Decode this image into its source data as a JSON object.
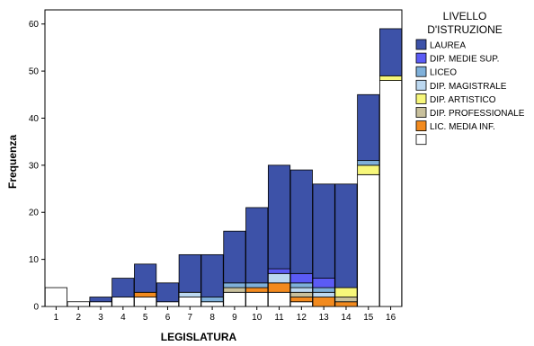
{
  "chart_data": {
    "type": "bar",
    "stacked": true,
    "title": "",
    "xlabel": "LEGISLATURA",
    "ylabel": "Frequenza",
    "categories": [
      "1",
      "2",
      "3",
      "4",
      "5",
      "6",
      "7",
      "8",
      "9",
      "10",
      "11",
      "12",
      "13",
      "14",
      "15",
      "16"
    ],
    "ylim": [
      0,
      63
    ],
    "yticks": [
      0,
      10,
      20,
      30,
      40,
      50,
      60
    ],
    "grid": false,
    "legend": {
      "title_lines": [
        "LIVELLO",
        "D'ISTRUZIONE"
      ],
      "placement": "right"
    },
    "series": [
      {
        "name": "",
        "color": "#ffffff",
        "values": [
          4,
          1,
          1,
          2,
          2,
          1,
          2,
          1,
          3,
          3,
          3,
          1,
          0,
          0,
          28,
          48
        ]
      },
      {
        "name": "LIC. MEDIA INF.",
        "color": "#f28a1e",
        "values": [
          0,
          0,
          0,
          0,
          1,
          0,
          0,
          0,
          0,
          1,
          2,
          1,
          2,
          1,
          0,
          0
        ]
      },
      {
        "name": "DIP. PROFESSIONALE",
        "color": "#c8c09c",
        "values": [
          0,
          0,
          0,
          0,
          0,
          0,
          0,
          0,
          1,
          0,
          0,
          1,
          0,
          1,
          0,
          0
        ]
      },
      {
        "name": "DIP. ARTISTICO",
        "color": "#f7f77a",
        "values": [
          0,
          0,
          0,
          0,
          0,
          0,
          0,
          0,
          0,
          0,
          0,
          0,
          0,
          2,
          2,
          1
        ]
      },
      {
        "name": "DIP. MAGISTRALE",
        "color": "#bcd8f0",
        "values": [
          0,
          0,
          0,
          0,
          0,
          0,
          1,
          0,
          0,
          0,
          2,
          1,
          1,
          0,
          0,
          0
        ]
      },
      {
        "name": "LICEO",
        "color": "#7fb0da",
        "values": [
          0,
          0,
          0,
          0,
          0,
          0,
          0,
          1,
          1,
          1,
          0,
          1,
          1,
          0,
          1,
          0
        ]
      },
      {
        "name": "DIP. MEDIE SUP.",
        "color": "#5b5bf5",
        "values": [
          0,
          0,
          0,
          0,
          0,
          0,
          0,
          0,
          0,
          0,
          1,
          2,
          2,
          0,
          0,
          0
        ]
      },
      {
        "name": "LAUREA",
        "color": "#3d52a8",
        "values": [
          0,
          0,
          1,
          4,
          6,
          4,
          8,
          9,
          11,
          16,
          22,
          22,
          20,
          22,
          14,
          10
        ]
      }
    ]
  }
}
